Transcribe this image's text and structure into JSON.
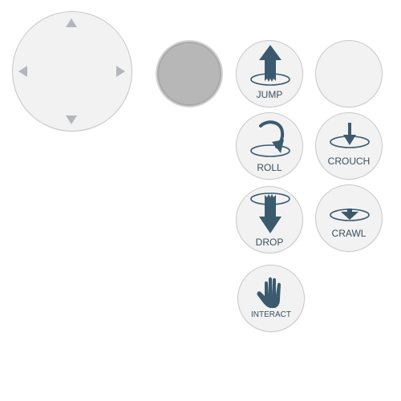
{
  "controls": {
    "dpad": {
      "directions": [
        "up",
        "down",
        "left",
        "right"
      ]
    },
    "buttons": {
      "jump": {
        "label": "JUMP",
        "icon": "jump-arrow-icon"
      },
      "blank": {
        "label": "",
        "icon": ""
      },
      "roll": {
        "label": "ROLL",
        "icon": "roll-arrow-icon"
      },
      "crouch": {
        "label": "CROUCH",
        "icon": "crouch-arrow-icon"
      },
      "drop": {
        "label": "DROP",
        "icon": "drop-arrow-icon"
      },
      "crawl": {
        "label": "CRAWL",
        "icon": "crawl-arrow-icon"
      },
      "interact": {
        "label": "INTERACT",
        "icon": "hand-icon"
      }
    }
  },
  "colors": {
    "icon": "#3c5a6e",
    "label": "#3a4f5f",
    "button_bg": "#f2f2f2",
    "button_border": "#c9c9c9",
    "stick": "#b7b7b7",
    "dpad_arrow": "#b3b7bb"
  }
}
